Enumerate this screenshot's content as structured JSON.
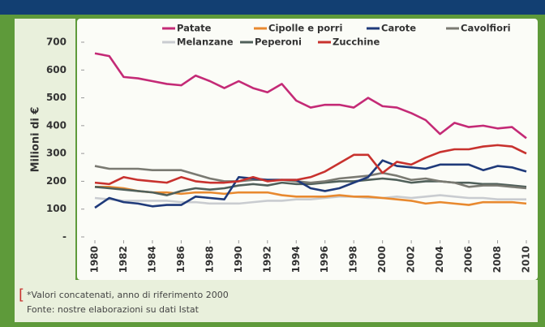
{
  "chart_data": {
    "type": "line",
    "y_label": "Milioni di €",
    "x": [
      1980,
      1981,
      1982,
      1983,
      1984,
      1985,
      1986,
      1987,
      1988,
      1989,
      1990,
      1991,
      1992,
      1993,
      1994,
      1995,
      1996,
      1997,
      1998,
      1999,
      2000,
      2001,
      2002,
      2003,
      2004,
      2005,
      2006,
      2007,
      2008,
      2009,
      2010
    ],
    "xlim": [
      1980,
      2010
    ],
    "xticks": [
      1980,
      1982,
      1984,
      1986,
      1988,
      1990,
      1992,
      1994,
      1996,
      1998,
      2000,
      2002,
      2004,
      2006,
      2008,
      2010
    ],
    "ylim": [
      0,
      700
    ],
    "yticks": [
      {
        "value": 0,
        "label": "-"
      },
      100,
      200,
      300,
      400,
      500,
      600,
      700
    ],
    "grid": false,
    "legend": "top",
    "series": [
      {
        "name": "Patate",
        "color": "#c42a76",
        "values": [
          660,
          650,
          575,
          570,
          560,
          550,
          545,
          580,
          560,
          535,
          560,
          535,
          520,
          550,
          490,
          465,
          475,
          475,
          465,
          500,
          470,
          465,
          445,
          420,
          370,
          410,
          395,
          400,
          390,
          395,
          355
        ]
      },
      {
        "name": "Cipolle e porri",
        "color": "#e8892f",
        "values": [
          180,
          180,
          175,
          165,
          160,
          160,
          155,
          160,
          160,
          155,
          160,
          160,
          160,
          150,
          145,
          145,
          145,
          150,
          145,
          145,
          140,
          135,
          130,
          120,
          125,
          120,
          115,
          125,
          125,
          125,
          120
        ]
      },
      {
        "name": "Carote",
        "color": "#1f3a7a",
        "values": [
          105,
          140,
          125,
          120,
          110,
          115,
          115,
          145,
          140,
          135,
          215,
          210,
          205,
          205,
          205,
          175,
          165,
          175,
          195,
          215,
          275,
          255,
          250,
          245,
          260,
          260,
          260,
          240,
          255,
          250,
          235
        ]
      },
      {
        "name": "Cavolfiori",
        "color": "#7a7a72",
        "values": [
          255,
          245,
          245,
          245,
          240,
          240,
          240,
          225,
          210,
          200,
          200,
          205,
          205,
          205,
          200,
          195,
          200,
          210,
          215,
          220,
          230,
          220,
          205,
          210,
          200,
          195,
          180,
          185,
          185,
          180,
          175
        ]
      },
      {
        "name": "Melanzane",
        "color": "#c9ccd0",
        "values": [
          140,
          135,
          130,
          130,
          130,
          130,
          125,
          125,
          120,
          120,
          120,
          125,
          130,
          130,
          135,
          135,
          140,
          145,
          145,
          140,
          140,
          145,
          140,
          145,
          150,
          145,
          140,
          140,
          135,
          135,
          135
        ]
      },
      {
        "name": "Peperoni",
        "color": "#50605a",
        "values": [
          180,
          175,
          170,
          165,
          160,
          150,
          165,
          175,
          170,
          175,
          185,
          190,
          185,
          195,
          190,
          190,
          195,
          200,
          200,
          205,
          210,
          205,
          195,
          200,
          200,
          195,
          195,
          190,
          190,
          185,
          180
        ]
      },
      {
        "name": "Zucchine",
        "color": "#c8322e",
        "values": [
          195,
          190,
          215,
          205,
          200,
          195,
          215,
          200,
          195,
          195,
          200,
          215,
          200,
          205,
          205,
          215,
          235,
          265,
          295,
          295,
          230,
          270,
          260,
          285,
          305,
          315,
          315,
          325,
          330,
          325,
          300
        ]
      }
    ],
    "notes": [
      "*Valori concatenati, anno di riferimento 2000",
      "Fonte: nostre elaborazioni su dati Istat"
    ]
  }
}
